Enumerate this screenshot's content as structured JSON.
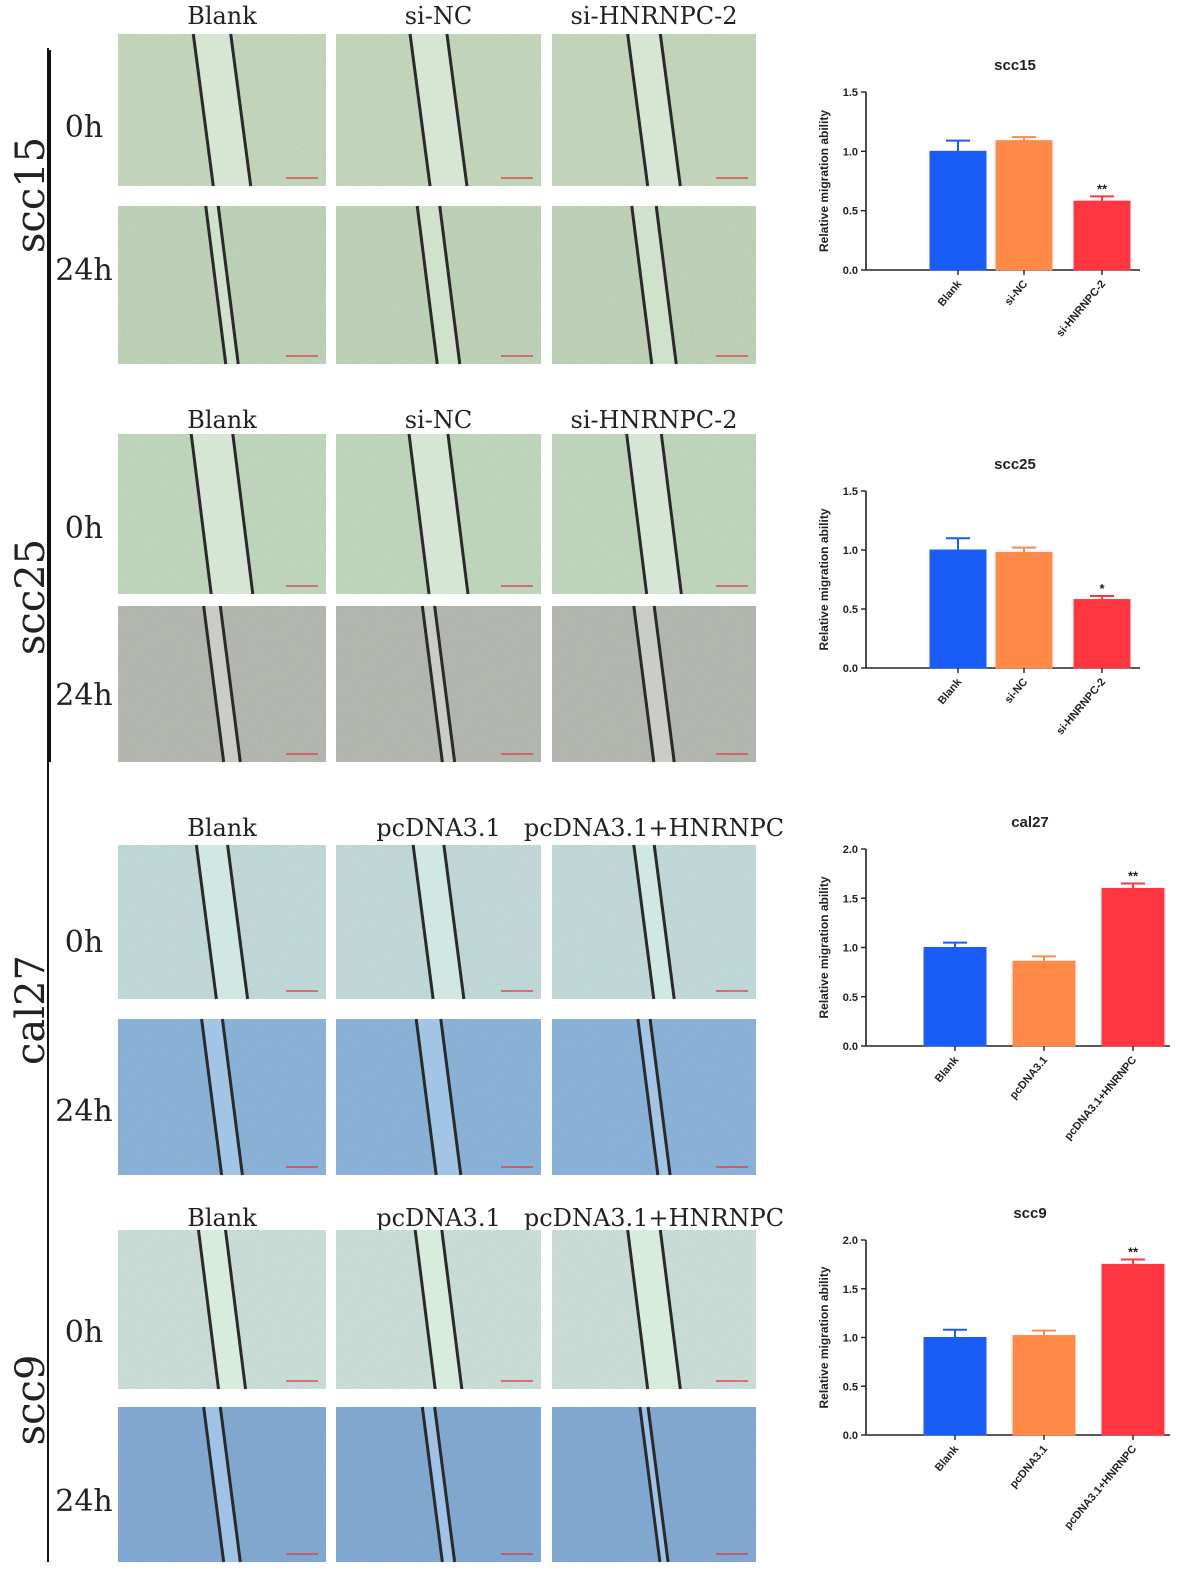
{
  "panels": [
    {
      "cell_line": "scc15",
      "time_labels": [
        "0h",
        "24h"
      ],
      "conditions": [
        "Blank",
        "si-NC",
        "si-HNRNPC-2"
      ],
      "stain": "green",
      "gaps_0h": [
        0.18,
        0.18,
        0.16
      ],
      "gaps_24h": [
        0.06,
        0.11,
        0.12
      ]
    },
    {
      "cell_line": "scc25",
      "time_labels": [
        "0h",
        "24h"
      ],
      "conditions": [
        "Blank",
        "si-NC",
        "si-HNRNPC-2"
      ],
      "stain": "green-gray",
      "gaps_0h": [
        0.2,
        0.19,
        0.17
      ],
      "gaps_24h": [
        0.08,
        0.06,
        0.1
      ]
    },
    {
      "cell_line": "cal27",
      "time_labels": [
        "0h",
        "24h"
      ],
      "conditions": [
        "Blank",
        "pcDNA3.1",
        "pcDNA3.1+HNRNPC"
      ],
      "stain": "cyan-blue",
      "gaps_0h": [
        0.15,
        0.15,
        0.1
      ],
      "gaps_24h": [
        0.1,
        0.12,
        0.06
      ]
    },
    {
      "cell_line": "scc9",
      "time_labels": [
        "0h",
        "24h"
      ],
      "conditions": [
        "Blank",
        "pcDNA3.1",
        "pcDNA3.1+HNRNPC"
      ],
      "stain": "blue",
      "gaps_0h": [
        0.13,
        0.13,
        0.16
      ],
      "gaps_24h": [
        0.08,
        0.06,
        0.04
      ]
    }
  ],
  "chart_data": [
    {
      "type": "bar",
      "title": "scc15",
      "ylabel": "Relative migration ability",
      "categories": [
        "Blank",
        "si-NC",
        "si-HNRNPC-2"
      ],
      "values": [
        1.0,
        1.09,
        0.58
      ],
      "errors": [
        0.09,
        0.03,
        0.04
      ],
      "significance": [
        "",
        "",
        "**"
      ],
      "ylim": [
        0,
        1.5
      ],
      "yticks": [
        "0.0",
        "0.5",
        "1.0",
        "1.5"
      ],
      "colors": [
        "#1a5cf7",
        "#ff8a47",
        "#ff3640"
      ]
    },
    {
      "type": "bar",
      "title": "scc25",
      "ylabel": "Relative migration ability",
      "categories": [
        "Blank",
        "si-NC",
        "si-HNRNPC-2"
      ],
      "values": [
        1.0,
        0.98,
        0.58
      ],
      "errors": [
        0.1,
        0.04,
        0.03
      ],
      "significance": [
        "",
        "",
        "*"
      ],
      "ylim": [
        0,
        1.5
      ],
      "yticks": [
        "0.0",
        "0.5",
        "1.0",
        "1.5"
      ],
      "colors": [
        "#1a5cf7",
        "#ff8a47",
        "#ff3640"
      ]
    },
    {
      "type": "bar",
      "title": "cal27",
      "ylabel": "Relative migration ability",
      "categories": [
        "Blank",
        "pcDNA3.1",
        "pcDNA3.1+HNRNPC"
      ],
      "values": [
        1.0,
        0.86,
        1.6
      ],
      "errors": [
        0.05,
        0.05,
        0.05
      ],
      "significance": [
        "",
        "",
        "**"
      ],
      "ylim": [
        0,
        2.0
      ],
      "yticks": [
        "0.0",
        "0.5",
        "1.0",
        "1.5",
        "2.0"
      ],
      "colors": [
        "#1a5cf7",
        "#ff8a47",
        "#ff3640"
      ]
    },
    {
      "type": "bar",
      "title": "scc9",
      "ylabel": "Relative migration ability",
      "categories": [
        "Blank",
        "pcDNA3.1",
        "pcDNA3.1+HNRNPC"
      ],
      "values": [
        1.0,
        1.02,
        1.75
      ],
      "errors": [
        0.08,
        0.05,
        0.05
      ],
      "significance": [
        "",
        "",
        "**"
      ],
      "ylim": [
        0,
        2.0
      ],
      "yticks": [
        "0.0",
        "0.5",
        "1.0",
        "1.5",
        "2.0"
      ],
      "colors": [
        "#1a5cf7",
        "#ff8a47",
        "#ff3640"
      ]
    }
  ]
}
